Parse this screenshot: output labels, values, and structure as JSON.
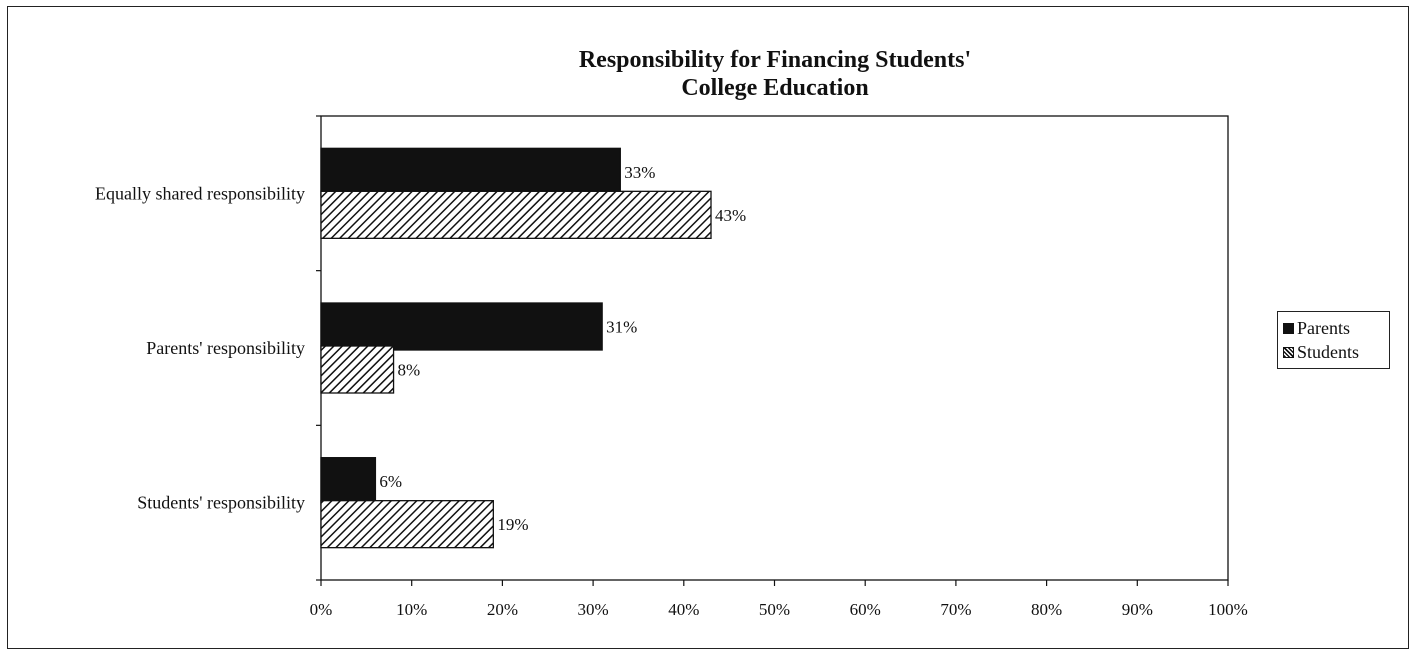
{
  "chart_data": {
    "type": "bar",
    "orientation": "horizontal",
    "title_lines": [
      "Responsibility for Financing Students'",
      "College Education"
    ],
    "categories": [
      "Equally shared responsibility",
      "Parents' responsibility",
      "Students' responsibility"
    ],
    "series": [
      {
        "name": "Parents",
        "values": [
          33,
          31,
          6
        ],
        "labels": [
          "33%",
          "31%",
          "6%"
        ],
        "color": "#111111",
        "pattern": "solid"
      },
      {
        "name": "Students",
        "values": [
          43,
          8,
          19
        ],
        "labels": [
          "43%",
          "8%",
          "19%"
        ],
        "color": "#111111",
        "pattern": "hatched"
      }
    ],
    "xlim": [
      0,
      100
    ],
    "x_ticks": [
      0,
      10,
      20,
      30,
      40,
      50,
      60,
      70,
      80,
      90,
      100
    ],
    "x_tick_labels": [
      "0%",
      "10%",
      "20%",
      "30%",
      "40%",
      "50%",
      "60%",
      "70%",
      "80%",
      "90%",
      "100%"
    ],
    "xlabel": "",
    "ylabel": "",
    "grid": false,
    "legend_position": "right"
  }
}
